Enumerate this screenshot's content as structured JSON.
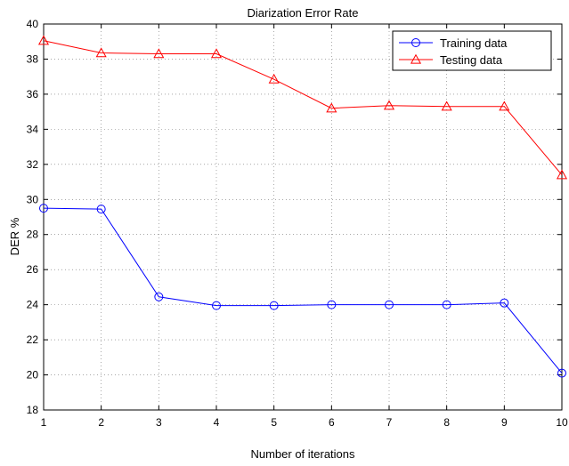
{
  "chart_data": {
    "type": "line",
    "title": "Diarization Error Rate",
    "xlabel": "Number of iterations",
    "ylabel": "DER %",
    "x": [
      1,
      2,
      3,
      4,
      5,
      6,
      7,
      8,
      9,
      10
    ],
    "xlim": [
      1,
      10
    ],
    "ylim": [
      18,
      40
    ],
    "xticks": [
      1,
      2,
      3,
      4,
      5,
      6,
      7,
      8,
      9,
      10
    ],
    "yticks": [
      18,
      20,
      22,
      24,
      26,
      28,
      30,
      32,
      34,
      36,
      38,
      40
    ],
    "grid": true,
    "legend_position": "top-right",
    "series": [
      {
        "name": "Training data",
        "marker": "circle",
        "color": "#0000ff",
        "values": [
          29.5,
          29.45,
          24.45,
          23.95,
          23.95,
          24.0,
          24.0,
          24.0,
          24.1,
          20.1
        ]
      },
      {
        "name": "Testing data",
        "marker": "triangle",
        "color": "#ff0000",
        "values": [
          39.05,
          38.35,
          38.3,
          38.3,
          36.85,
          35.2,
          35.35,
          35.3,
          35.3,
          31.4
        ]
      }
    ]
  }
}
